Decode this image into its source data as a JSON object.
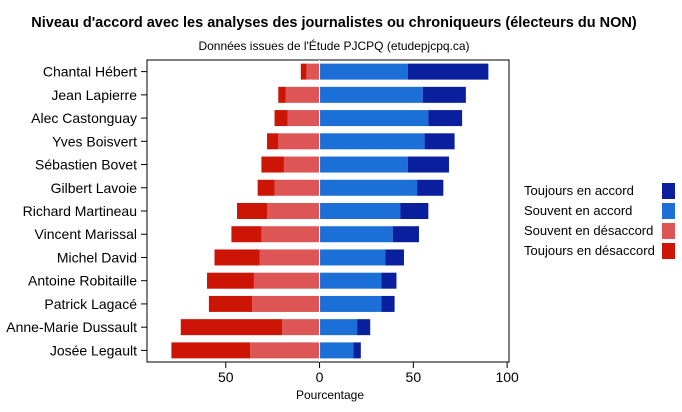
{
  "chart_data": {
    "type": "bar",
    "orientation": "horizontal",
    "stacked": "diverging",
    "title": "Niveau d'accord avec les analyses des journalistes ou chroniqueurs (électeurs du NON)",
    "subtitle": "Données issues de l'Étude PJCPQ (etudepjcpq.ca)",
    "xlabel": "Pourcentage",
    "ylabel": "",
    "xlim": [
      -92,
      101
    ],
    "x_ticks": [
      -50,
      0,
      50,
      100
    ],
    "x_tick_labels": [
      "50",
      "0",
      "50",
      "100"
    ],
    "grid": false,
    "legend_position": "right",
    "categories": [
      "Chantal Hébert",
      "Jean Lapierre",
      "Alec Castonguay",
      "Yves Boisvert",
      "Sébastien Bovet",
      "Gilbert Lavoie",
      "Richard Martineau",
      "Vincent Marissal",
      "Michel David",
      "Antoine Robitaille",
      "Patrick Lagacé",
      "Anne-Marie Dussault",
      "Josée Legault"
    ],
    "series": [
      {
        "name": "Toujours en accord",
        "side": "positive",
        "color": "#0a1f9e",
        "values": [
          43,
          23,
          18,
          16,
          22,
          14,
          15,
          14,
          10,
          8,
          7,
          7,
          4
        ]
      },
      {
        "name": "Souvent en accord",
        "side": "positive",
        "color": "#1c6fd6",
        "values": [
          47,
          55,
          58,
          56,
          47,
          52,
          43,
          39,
          35,
          33,
          33,
          20,
          18
        ]
      },
      {
        "name": "Souvent en désaccord",
        "side": "negative",
        "color": "#de5555",
        "values": [
          7,
          18,
          17,
          22,
          19,
          24,
          28,
          31,
          32,
          35,
          36,
          20,
          37
        ]
      },
      {
        "name": "Toujours en désaccord",
        "side": "negative",
        "color": "#cc1505",
        "values": [
          3,
          4,
          7,
          6,
          12,
          9,
          16,
          16,
          24,
          25,
          23,
          54,
          42
        ]
      }
    ]
  }
}
